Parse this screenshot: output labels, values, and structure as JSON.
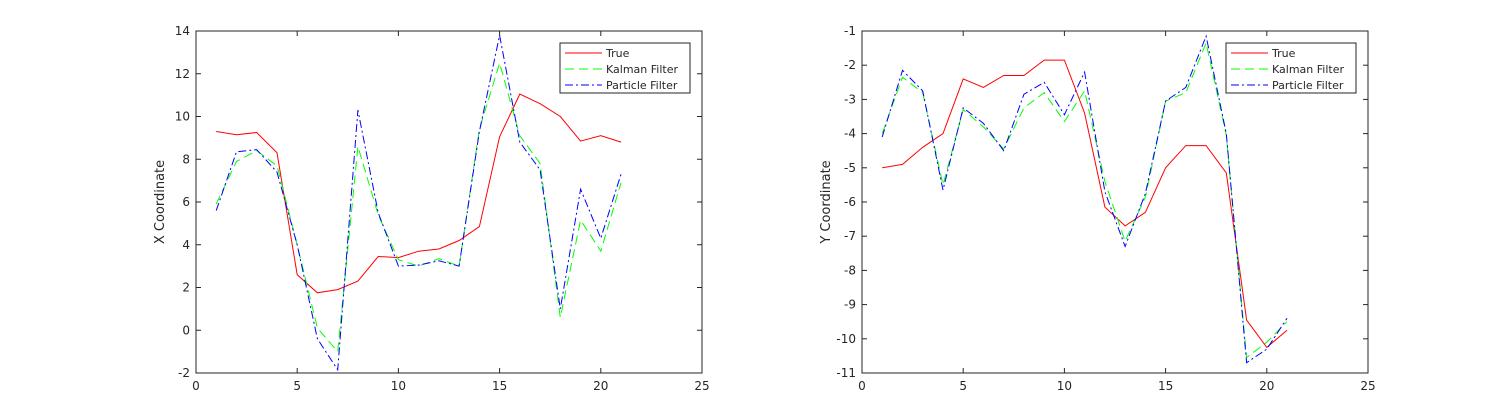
{
  "chart_data": [
    {
      "type": "line",
      "title": "",
      "xlabel": "",
      "ylabel": "X Coordinate",
      "xlim": [
        0,
        25
      ],
      "ylim": [
        -2,
        14
      ],
      "xticks": [
        0,
        5,
        10,
        15,
        20,
        25
      ],
      "yticks": [
        -2,
        0,
        2,
        4,
        6,
        8,
        10,
        12,
        14
      ],
      "grid": false,
      "legend_position": "top-right",
      "x": [
        1,
        2,
        3,
        4,
        5,
        6,
        7,
        8,
        9,
        10,
        11,
        12,
        13,
        14,
        15,
        16,
        17,
        18,
        19,
        20,
        21
      ],
      "series": [
        {
          "name": "True",
          "color": "#ff0000",
          "dash": "solid",
          "values": [
            9.3,
            9.15,
            9.25,
            8.3,
            2.6,
            1.75,
            1.9,
            2.3,
            3.45,
            3.4,
            3.7,
            3.8,
            4.2,
            4.85,
            9.05,
            11.05,
            10.6,
            10.0,
            8.85,
            9.1,
            8.8
          ]
        },
        {
          "name": "Kalman Filter",
          "color": "#00ff00",
          "dash": "dashed",
          "values": [
            5.9,
            7.9,
            8.4,
            7.7,
            4.0,
            0.1,
            -1.0,
            8.6,
            5.4,
            3.3,
            3.0,
            3.35,
            3.0,
            9.4,
            12.5,
            9.1,
            7.8,
            0.6,
            5.15,
            3.7,
            6.9
          ]
        },
        {
          "name": "Particle Filter",
          "color": "#0000ff",
          "dash": "dashdot",
          "values": [
            5.6,
            8.35,
            8.45,
            7.4,
            4.0,
            -0.4,
            -1.85,
            10.3,
            5.5,
            3.0,
            3.05,
            3.25,
            3.0,
            9.3,
            13.8,
            8.8,
            7.5,
            1.0,
            6.6,
            4.3,
            7.3
          ]
        }
      ]
    },
    {
      "type": "line",
      "title": "",
      "xlabel": "",
      "ylabel": "Y Coordinate",
      "xlim": [
        0,
        25
      ],
      "ylim": [
        -11,
        -1
      ],
      "xticks": [
        0,
        5,
        10,
        15,
        20,
        25
      ],
      "yticks": [
        -11,
        -10,
        -9,
        -8,
        -7,
        -6,
        -5,
        -4,
        -3,
        -2,
        -1
      ],
      "grid": false,
      "legend_position": "top-right",
      "x": [
        1,
        2,
        3,
        4,
        5,
        6,
        7,
        8,
        9,
        10,
        11,
        12,
        13,
        14,
        15,
        16,
        17,
        18,
        19,
        20,
        21
      ],
      "series": [
        {
          "name": "True",
          "color": "#ff0000",
          "dash": "solid",
          "values": [
            -5.0,
            -4.9,
            -4.4,
            -4.0,
            -2.4,
            -2.65,
            -2.3,
            -2.3,
            -1.85,
            -1.85,
            -3.4,
            -6.15,
            -6.7,
            -6.3,
            -5.0,
            -4.35,
            -4.35,
            -5.15,
            -9.45,
            -10.25,
            -9.75
          ]
        },
        {
          "name": "Kalman Filter",
          "color": "#00ff00",
          "dash": "dashed",
          "values": [
            -4.0,
            -2.35,
            -2.8,
            -5.5,
            -3.3,
            -3.8,
            -4.45,
            -3.25,
            -2.8,
            -3.65,
            -2.75,
            -5.4,
            -7.15,
            -5.85,
            -3.05,
            -2.8,
            -1.35,
            -4.05,
            -10.55,
            -10.1,
            -9.5
          ]
        },
        {
          "name": "Particle Filter",
          "color": "#0000ff",
          "dash": "dashdot",
          "values": [
            -4.1,
            -2.15,
            -2.75,
            -5.65,
            -3.25,
            -3.7,
            -4.5,
            -2.85,
            -2.5,
            -3.45,
            -2.2,
            -5.7,
            -7.3,
            -5.75,
            -3.05,
            -2.65,
            -1.15,
            -4.0,
            -10.7,
            -10.3,
            -9.4
          ]
        }
      ]
    }
  ]
}
